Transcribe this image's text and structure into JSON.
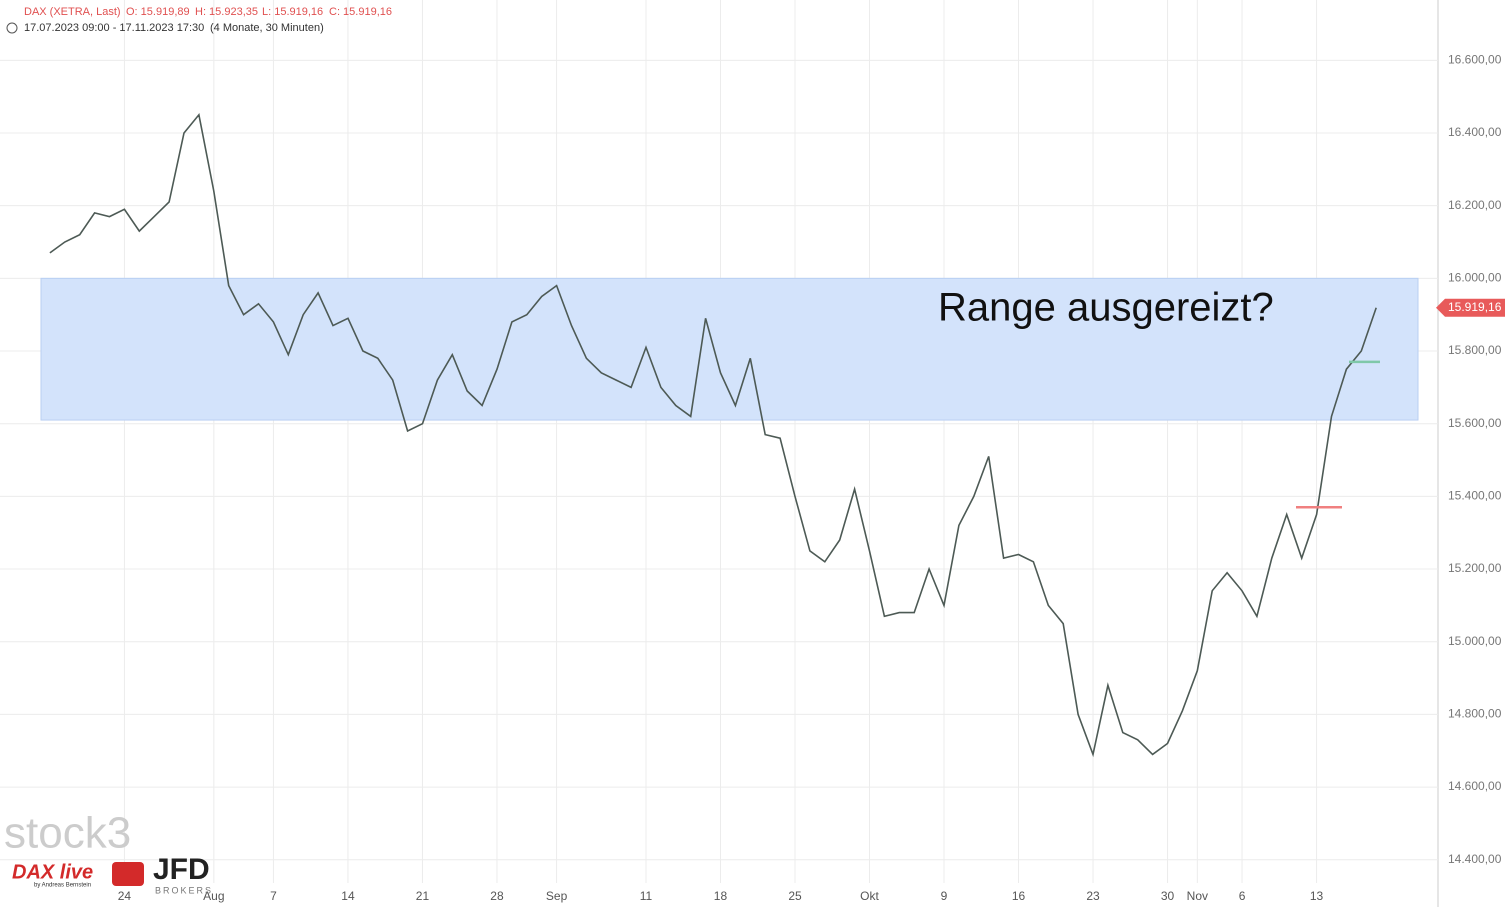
{
  "chart_data": {
    "type": "line",
    "header": {
      "symbol": "DAX (XETRA, Last)",
      "open": "O: 15.919,89",
      "high": "H: 15.923,35",
      "low": "L: 15.919,16",
      "close": "C: 15.919,16",
      "period": "17.07.2023 09:00 - 17.11.2023 17:30",
      "span": "(4 Monate, 30 Minuten)"
    },
    "annotation": "Range ausgereizt?",
    "range_band": {
      "low": 15610,
      "high": 16000,
      "color": "#d3e3fb"
    },
    "levels": [
      {
        "value": 15370,
        "color": "#f08080"
      },
      {
        "value": 15770,
        "color": "#7fc8a9"
      }
    ],
    "last_price": {
      "value": 15919.16,
      "label": "15.919,16",
      "color": "#e85a5a"
    },
    "logos": {
      "stock3": "stock3",
      "daxlive": "DAX live",
      "author": "by Andreas Bernstein",
      "jfd": "JFD",
      "brokers": "BROKERS"
    },
    "x": [
      0,
      1,
      2,
      3,
      4,
      5,
      6,
      7,
      8,
      9,
      10,
      11,
      12,
      13,
      14,
      15,
      16,
      17,
      18,
      19,
      20,
      21,
      22,
      23,
      24,
      25,
      26,
      27,
      28,
      29,
      30,
      31,
      32,
      33,
      34,
      35,
      36,
      37,
      38,
      39,
      40,
      41,
      42,
      43,
      44,
      45,
      46,
      47,
      48,
      49,
      50,
      51,
      52,
      53,
      54,
      55,
      56,
      57,
      58,
      59,
      60,
      61,
      62,
      63,
      64,
      65,
      66,
      67,
      68,
      69,
      70,
      71,
      72,
      73,
      74,
      75,
      76,
      77,
      78,
      79,
      80,
      81,
      82,
      83,
      84,
      85,
      86,
      87,
      88,
      89
    ],
    "series": [
      {
        "name": "DAX",
        "color": "#4d5a55",
        "values": [
          16070,
          16100,
          16120,
          16180,
          16170,
          16190,
          16130,
          16170,
          16210,
          16400,
          16450,
          16240,
          15980,
          15900,
          15930,
          15880,
          15790,
          15900,
          15960,
          15870,
          15890,
          15800,
          15780,
          15720,
          15580,
          15600,
          15720,
          15790,
          15690,
          15650,
          15750,
          15880,
          15900,
          15950,
          15980,
          15870,
          15780,
          15740,
          15720,
          15700,
          15810,
          15700,
          15650,
          15620,
          15890,
          15740,
          15650,
          15780,
          15570,
          15560,
          15400,
          15250,
          15220,
          15280,
          15420,
          15250,
          15070,
          15080,
          15080,
          15200,
          15100,
          15320,
          15400,
          15510,
          15230,
          15240,
          15220,
          15100,
          15050,
          14800,
          14690,
          14880,
          14750,
          14730,
          14690,
          14720,
          14810,
          14920,
          15140,
          15190,
          15140,
          15070,
          15230,
          15350,
          15230,
          15350,
          15620,
          15750,
          15800,
          15919.16
        ]
      }
    ],
    "xlim": [
      -3.35,
      93.15
    ],
    "xticks": [
      {
        "value": 5,
        "label": "24"
      },
      {
        "value": 11,
        "label": "Aug"
      },
      {
        "value": 15,
        "label": "7"
      },
      {
        "value": 20,
        "label": "14"
      },
      {
        "value": 25,
        "label": "21"
      },
      {
        "value": 30,
        "label": "28"
      },
      {
        "value": 34,
        "label": "Sep"
      },
      {
        "value": 40,
        "label": "11"
      },
      {
        "value": 45,
        "label": "18"
      },
      {
        "value": 50,
        "label": "25"
      },
      {
        "value": 55,
        "label": "Okt"
      },
      {
        "value": 60,
        "label": "9"
      },
      {
        "value": 65,
        "label": "16"
      },
      {
        "value": 70,
        "label": "23"
      },
      {
        "value": 75,
        "label": "30"
      },
      {
        "value": 77,
        "label": "Nov"
      },
      {
        "value": 80,
        "label": "6"
      },
      {
        "value": 85,
        "label": "13"
      }
    ],
    "ylim": [
      14336,
      16766
    ],
    "yticks": [
      {
        "value": 14400,
        "label": "14.400,00"
      },
      {
        "value": 14600,
        "label": "14.600,00"
      },
      {
        "value": 14800,
        "label": "14.800,00"
      },
      {
        "value": 15000,
        "label": "15.000,00"
      },
      {
        "value": 15200,
        "label": "15.200,00"
      },
      {
        "value": 15400,
        "label": "15.400,00"
      },
      {
        "value": 15600,
        "label": "15.600,00"
      },
      {
        "value": 15800,
        "label": "15.800,00"
      },
      {
        "value": 16000,
        "label": "16.000,00"
      },
      {
        "value": 16200,
        "label": "16.200,00"
      },
      {
        "value": 16400,
        "label": "16.400,00"
      },
      {
        "value": 16600,
        "label": "16.600,00"
      }
    ],
    "grid": true
  }
}
